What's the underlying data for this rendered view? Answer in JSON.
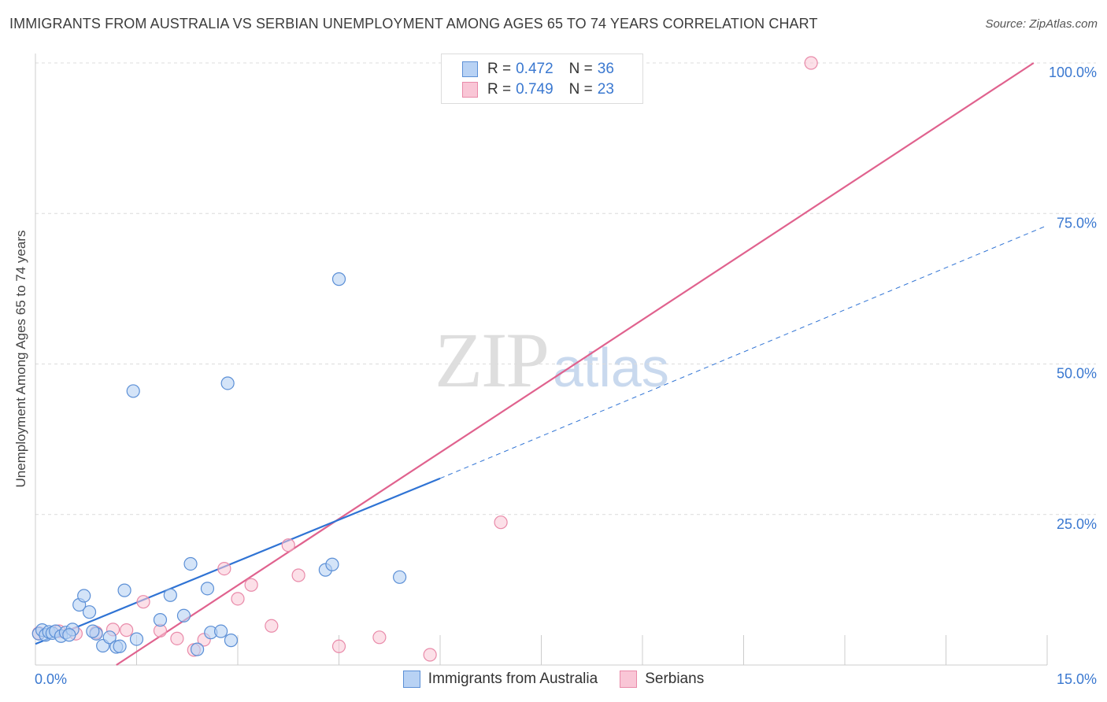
{
  "title": "IMMIGRANTS FROM AUSTRALIA VS SERBIAN UNEMPLOYMENT AMONG AGES 65 TO 74 YEARS CORRELATION CHART",
  "source": "Source: ZipAtlas.com",
  "watermark": {
    "zip": "ZIP",
    "atlas": "atlas"
  },
  "legend_top": [
    {
      "r_label": "R = ",
      "r_value": "0.472",
      "n_label": "N = ",
      "n_value": "36"
    },
    {
      "r_label": "R = ",
      "r_value": "0.749",
      "n_label": "N = ",
      "n_value": "23"
    }
  ],
  "bottom_legend": [
    "Immigrants from Australia",
    "Serbians"
  ],
  "colors": {
    "blue_fill": "#b8d2f4",
    "blue_stroke": "#5b8fd6",
    "blue_line": "#2f73d4",
    "pink_fill": "#f9c6d6",
    "pink_stroke": "#e98aa9",
    "pink_line": "#e0628e",
    "grid": "#dcdcdc",
    "tick_label": "#3a78d0"
  },
  "chart_data": {
    "type": "scatter",
    "title": "IMMIGRANTS FROM AUSTRALIA VS SERBIAN UNEMPLOYMENT AMONG AGES 65 TO 74 YEARS CORRELATION CHART",
    "xlabel": "",
    "ylabel": "Unemployment Among Ages 65 to 74 years",
    "xlim": [
      0,
      15
    ],
    "ylim": [
      0,
      100
    ],
    "x_tick_labels": [
      "0.0%",
      "15.0%"
    ],
    "y_tick_labels": [
      "100.0%",
      "75.0%",
      "50.0%",
      "25.0%"
    ],
    "y_tick_values": [
      100,
      75,
      50,
      25
    ],
    "grid": true,
    "series": [
      {
        "name": "Immigrants from Australia",
        "r": 0.472,
        "n": 36,
        "points": [
          [
            0.05,
            5.2
          ],
          [
            0.1,
            5.8
          ],
          [
            0.15,
            5.0
          ],
          [
            0.2,
            5.5
          ],
          [
            0.25,
            5.3
          ],
          [
            0.3,
            5.6
          ],
          [
            0.38,
            4.8
          ],
          [
            0.45,
            5.4
          ],
          [
            0.55,
            5.9
          ],
          [
            0.65,
            10.0
          ],
          [
            0.72,
            11.5
          ],
          [
            0.8,
            8.8
          ],
          [
            0.9,
            5.2
          ],
          [
            1.0,
            3.2
          ],
          [
            1.1,
            4.6
          ],
          [
            1.2,
            3.0
          ],
          [
            1.32,
            12.4
          ],
          [
            1.45,
            45.5
          ],
          [
            1.5,
            4.3
          ],
          [
            1.85,
            7.5
          ],
          [
            2.0,
            11.6
          ],
          [
            2.2,
            8.2
          ],
          [
            2.3,
            16.8
          ],
          [
            2.4,
            2.6
          ],
          [
            2.55,
            12.7
          ],
          [
            2.6,
            5.4
          ],
          [
            2.75,
            5.6
          ],
          [
            2.85,
            46.8
          ],
          [
            2.9,
            4.1
          ],
          [
            4.3,
            15.8
          ],
          [
            4.4,
            16.7
          ],
          [
            4.5,
            64.1
          ],
          [
            5.4,
            14.6
          ],
          [
            0.5,
            5.0
          ],
          [
            1.25,
            3.1
          ],
          [
            0.85,
            5.6
          ]
        ],
        "trend": {
          "x": [
            0,
            6.0
          ],
          "y": [
            3.5,
            31.0
          ]
        },
        "trend_extension": {
          "x": [
            6.0,
            15.0
          ],
          "y": [
            31.0,
            73.0
          ]
        }
      },
      {
        "name": "Serbians",
        "r": 0.749,
        "n": 23,
        "points": [
          [
            0.05,
            5.3
          ],
          [
            0.35,
            5.6
          ],
          [
            0.6,
            5.2
          ],
          [
            0.9,
            5.4
          ],
          [
            1.15,
            5.9
          ],
          [
            1.35,
            5.8
          ],
          [
            1.6,
            10.5
          ],
          [
            1.85,
            5.7
          ],
          [
            2.1,
            4.4
          ],
          [
            2.35,
            2.5
          ],
          [
            2.5,
            4.2
          ],
          [
            2.8,
            16.0
          ],
          [
            3.0,
            11.0
          ],
          [
            3.2,
            13.3
          ],
          [
            3.5,
            6.5
          ],
          [
            3.75,
            19.9
          ],
          [
            3.9,
            14.9
          ],
          [
            4.5,
            3.1
          ],
          [
            5.1,
            4.6
          ],
          [
            5.85,
            1.7
          ],
          [
            6.9,
            23.7
          ],
          [
            7.2,
            100.0
          ],
          [
            11.5,
            100.0
          ]
        ],
        "trend": {
          "x": [
            1.2,
            14.8
          ],
          "y": [
            0,
            100
          ]
        }
      }
    ]
  }
}
